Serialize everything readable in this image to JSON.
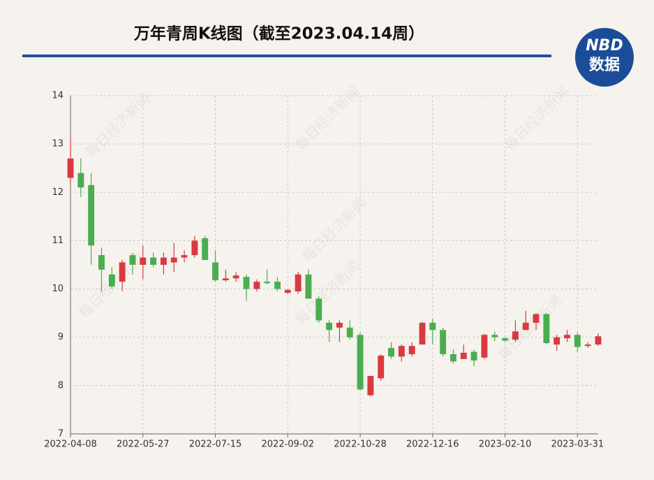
{
  "header": {
    "title": "万年青周K线图（截至2023.04.14周）",
    "logo_top": "NBD",
    "logo_bottom": "数据"
  },
  "watermark": "每日经济新闻",
  "chart_data": {
    "type": "candlestick",
    "up_color": "#d83a3f",
    "down_color": "#4aad4f",
    "categories": [
      "2022-04-08",
      null,
      null,
      null,
      null,
      null,
      null,
      "2022-05-27",
      null,
      null,
      null,
      null,
      null,
      null,
      "2022-07-15",
      null,
      null,
      null,
      null,
      null,
      null,
      "2022-09-02",
      null,
      null,
      null,
      null,
      null,
      null,
      "2022-10-28",
      null,
      null,
      null,
      null,
      null,
      null,
      "2022-12-16",
      null,
      null,
      null,
      null,
      null,
      null,
      "2023-02-10",
      null,
      null,
      null,
      null,
      null,
      null,
      "2023-03-31",
      null,
      null
    ],
    "open": [
      12.3,
      12.4,
      12.15,
      10.7,
      10.3,
      10.15,
      10.7,
      10.5,
      10.65,
      10.5,
      10.55,
      10.65,
      10.7,
      11.05,
      10.55,
      10.18,
      10.22,
      10.25,
      10.0,
      10.15,
      10.15,
      9.92,
      9.95,
      10.3,
      9.8,
      9.3,
      9.2,
      9.2,
      9.05,
      7.8,
      8.15,
      8.78,
      8.6,
      8.65,
      8.85,
      9.3,
      9.15,
      8.65,
      8.55,
      8.7,
      8.58,
      9.05,
      8.98,
      8.95,
      9.15,
      9.3,
      9.48,
      8.85,
      8.98,
      9.05,
      8.82,
      8.85
    ],
    "high": [
      13.15,
      12.7,
      12.4,
      10.85,
      10.45,
      10.6,
      10.75,
      10.9,
      10.75,
      10.75,
      10.95,
      10.8,
      11.1,
      11.1,
      10.8,
      10.4,
      10.35,
      10.3,
      10.2,
      10.4,
      10.25,
      10.0,
      10.35,
      10.4,
      9.85,
      9.35,
      9.35,
      9.35,
      9.1,
      8.2,
      8.65,
      8.9,
      8.85,
      8.9,
      9.32,
      9.38,
      9.2,
      8.75,
      8.85,
      8.75,
      9.07,
      9.12,
      9.0,
      9.35,
      9.55,
      9.5,
      9.5,
      9.05,
      9.15,
      9.1,
      8.9,
      9.08
    ],
    "low": [
      12.2,
      11.9,
      10.5,
      9.95,
      10.0,
      9.95,
      10.3,
      10.2,
      10.45,
      10.3,
      10.35,
      10.55,
      10.65,
      10.6,
      10.15,
      10.15,
      10.15,
      9.75,
      9.95,
      10.1,
      9.95,
      9.9,
      9.9,
      9.8,
      9.3,
      8.9,
      8.9,
      8.95,
      7.9,
      7.78,
      8.1,
      8.55,
      8.5,
      8.6,
      8.85,
      8.85,
      8.6,
      8.45,
      8.55,
      8.4,
      8.55,
      8.92,
      8.9,
      8.9,
      9.15,
      9.15,
      8.85,
      8.72,
      8.9,
      8.7,
      8.78,
      8.82
    ],
    "close": [
      12.7,
      12.1,
      10.9,
      10.4,
      10.05,
      10.55,
      10.5,
      10.65,
      10.5,
      10.65,
      10.65,
      10.7,
      11.0,
      10.6,
      10.18,
      10.22,
      10.28,
      10.0,
      10.15,
      10.12,
      10.0,
      9.98,
      10.3,
      9.8,
      9.35,
      9.15,
      9.3,
      9.0,
      7.92,
      8.2,
      8.62,
      8.6,
      8.82,
      8.82,
      9.3,
      9.15,
      8.65,
      8.5,
      8.68,
      8.52,
      9.05,
      9.0,
      8.93,
      9.12,
      9.3,
      9.48,
      8.88,
      9.0,
      9.05,
      8.8,
      8.85,
      9.02
    ],
    "ylim": [
      7,
      14
    ],
    "yticks": [
      7,
      8,
      9,
      10,
      11,
      12,
      13,
      14
    ],
    "grid": true
  }
}
